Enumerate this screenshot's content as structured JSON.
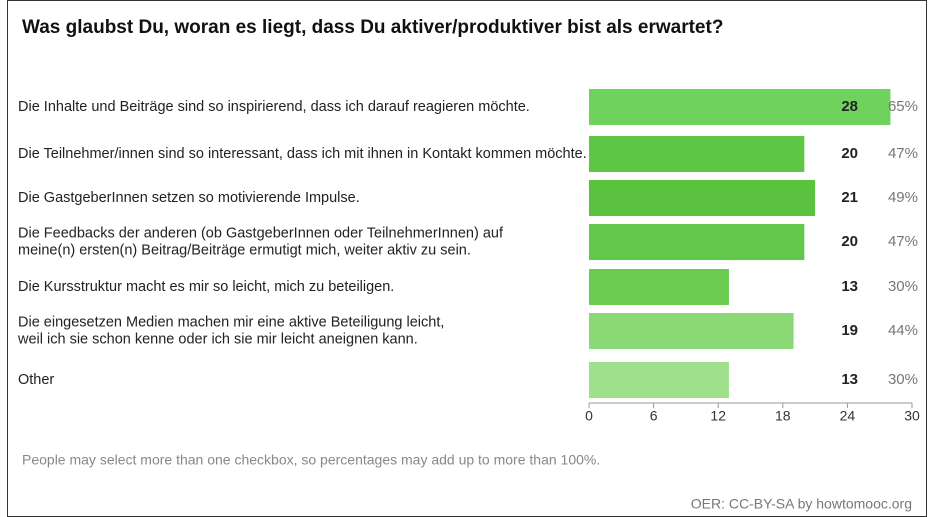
{
  "chart_data": {
    "type": "bar",
    "orientation": "horizontal",
    "title": "Was glaubst Du, woran es liegt, dass Du aktiver/produktiver bist als erwartet?",
    "categories": [
      [
        "Die Inhalte und Beiträge sind so inspirierend, dass ich darauf reagieren möchte."
      ],
      [
        "Die Teilnehmer/innen sind so interessant, dass ich mit ihnen in Kontakt kommen möchte."
      ],
      [
        "Die GastgeberInnen setzen so motivierende Impulse."
      ],
      [
        "Die Feedbacks der anderen (ob GastgeberInnen oder TeilnehmerInnen) auf",
        "meine(n) ersten(n) Beitrag/Beiträge ermutigt mich, weiter aktiv zu sein."
      ],
      [
        "Die Kursstruktur macht es mir so leicht, mich zu beteiligen."
      ],
      [
        "Die eingesetzen Medien machen mir eine aktive Beteiligung leicht,",
        "weil ich sie schon kenne oder ich sie mir leicht aneignen kann."
      ],
      [
        "Other"
      ]
    ],
    "values": [
      28,
      20,
      21,
      20,
      13,
      19,
      13
    ],
    "percent_labels": [
      "65%",
      "47%",
      "49%",
      "47%",
      "30%",
      "44%",
      "30%"
    ],
    "colors": [
      "#6fd25c",
      "#5ec645",
      "#5ac23f",
      "#62c84a",
      "#6acd52",
      "#8bd876",
      "#9fe08c"
    ],
    "xlim": [
      0,
      30
    ],
    "xticks": [
      0,
      6,
      12,
      18,
      24,
      30
    ],
    "footnote": "People may select more than one checkbox, so percentages may add up to more than 100%.",
    "credit": "OER: CC-BY-SA by howtomooc.org"
  }
}
